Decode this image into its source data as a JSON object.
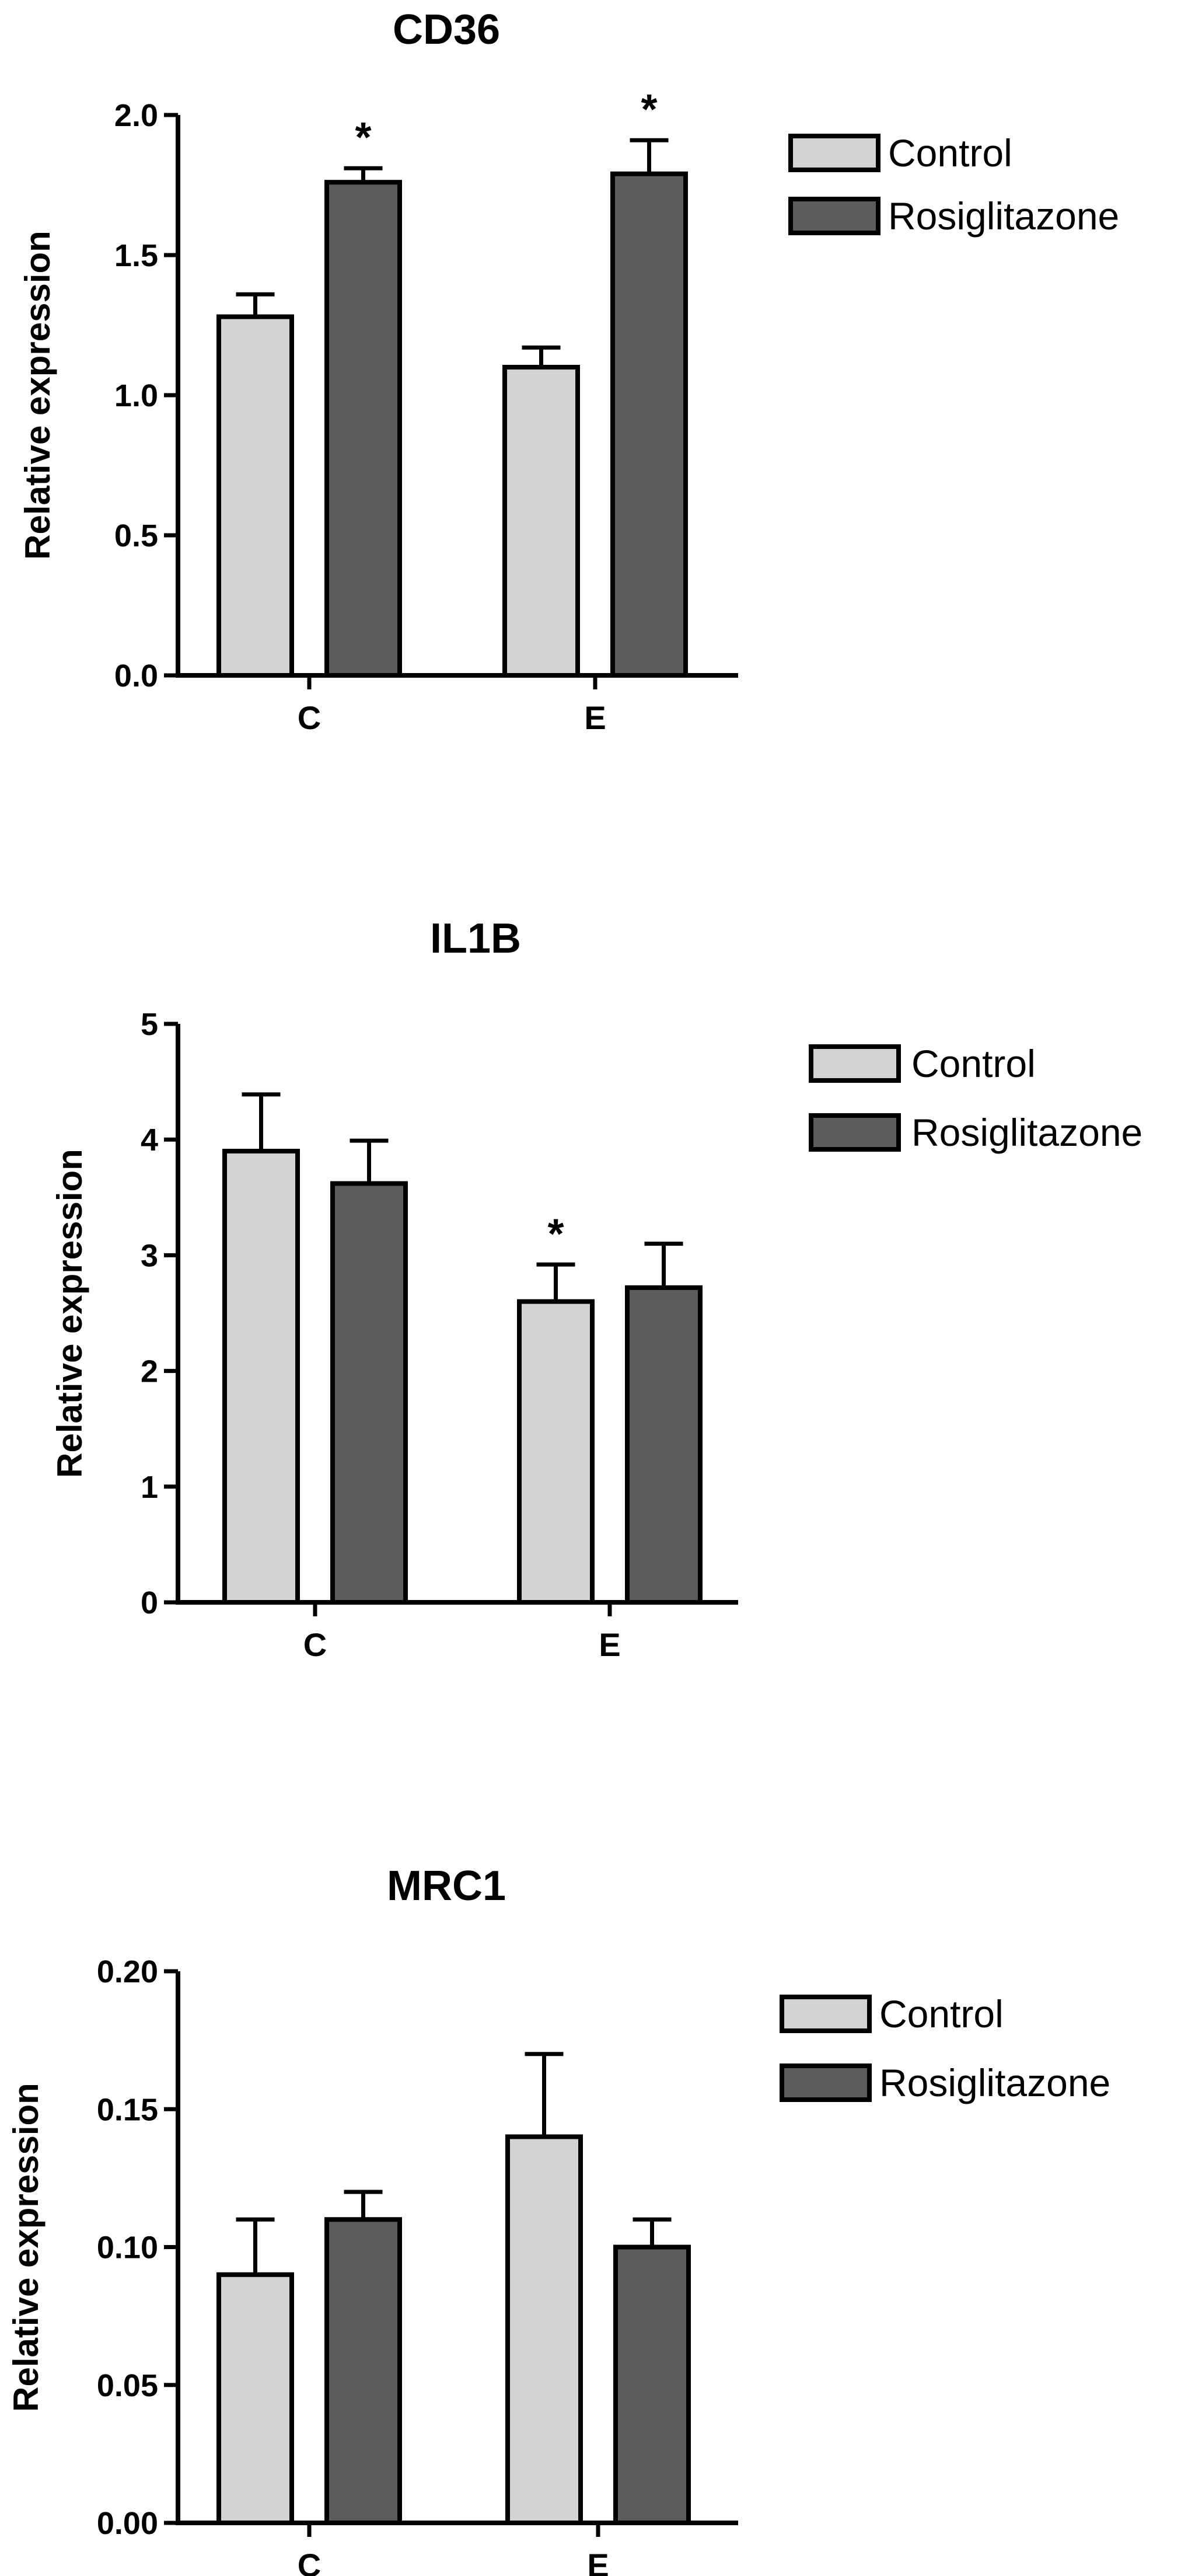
{
  "colors": {
    "control": "#d3d3d3",
    "rosiglitazone": "#5c5c5c",
    "axis": "#000000"
  },
  "chart_data": [
    {
      "type": "bar",
      "title": "CD36",
      "ylabel": "Relative expression",
      "xlabel": "",
      "categories": [
        "C",
        "E"
      ],
      "ylim": [
        0,
        2.0
      ],
      "yticks": [
        "0.0",
        "0.5",
        "1.0",
        "1.5",
        "2.0"
      ],
      "legend": "right",
      "series": [
        {
          "name": "Control",
          "values": [
            1.28,
            1.1
          ],
          "errors": [
            0.08,
            0.07
          ],
          "significance": [
            "",
            ""
          ]
        },
        {
          "name": "Rosiglitazone",
          "values": [
            1.76,
            1.79
          ],
          "errors": [
            0.05,
            0.12
          ],
          "significance": [
            "*",
            "*"
          ]
        }
      ]
    },
    {
      "type": "bar",
      "title": "IL1B",
      "ylabel": "Relative expression",
      "xlabel": "",
      "categories": [
        "C",
        "E"
      ],
      "ylim": [
        0,
        5
      ],
      "yticks": [
        "0",
        "1",
        "2",
        "3",
        "4",
        "5"
      ],
      "legend": "right",
      "series": [
        {
          "name": "Control",
          "values": [
            3.9,
            2.6
          ],
          "errors": [
            0.49,
            0.32
          ],
          "significance": [
            "",
            "*"
          ]
        },
        {
          "name": "Rosiglitazone",
          "values": [
            3.62,
            2.72
          ],
          "errors": [
            0.37,
            0.38
          ],
          "significance": [
            "",
            ""
          ]
        }
      ]
    },
    {
      "type": "bar",
      "title": "MRC1",
      "ylabel": "Relative expression",
      "xlabel": "",
      "categories": [
        "C",
        "E"
      ],
      "ylim": [
        0,
        0.2
      ],
      "yticks": [
        "0.00",
        "0.05",
        "0.10",
        "0.15",
        "0.20"
      ],
      "legend": "right",
      "series": [
        {
          "name": "Control",
          "values": [
            0.09,
            0.14
          ],
          "errors": [
            0.02,
            0.03
          ],
          "significance": [
            "",
            ""
          ]
        },
        {
          "name": "Rosiglitazone",
          "values": [
            0.11,
            0.1
          ],
          "errors": [
            0.01,
            0.01
          ],
          "significance": [
            "",
            ""
          ]
        }
      ]
    }
  ]
}
